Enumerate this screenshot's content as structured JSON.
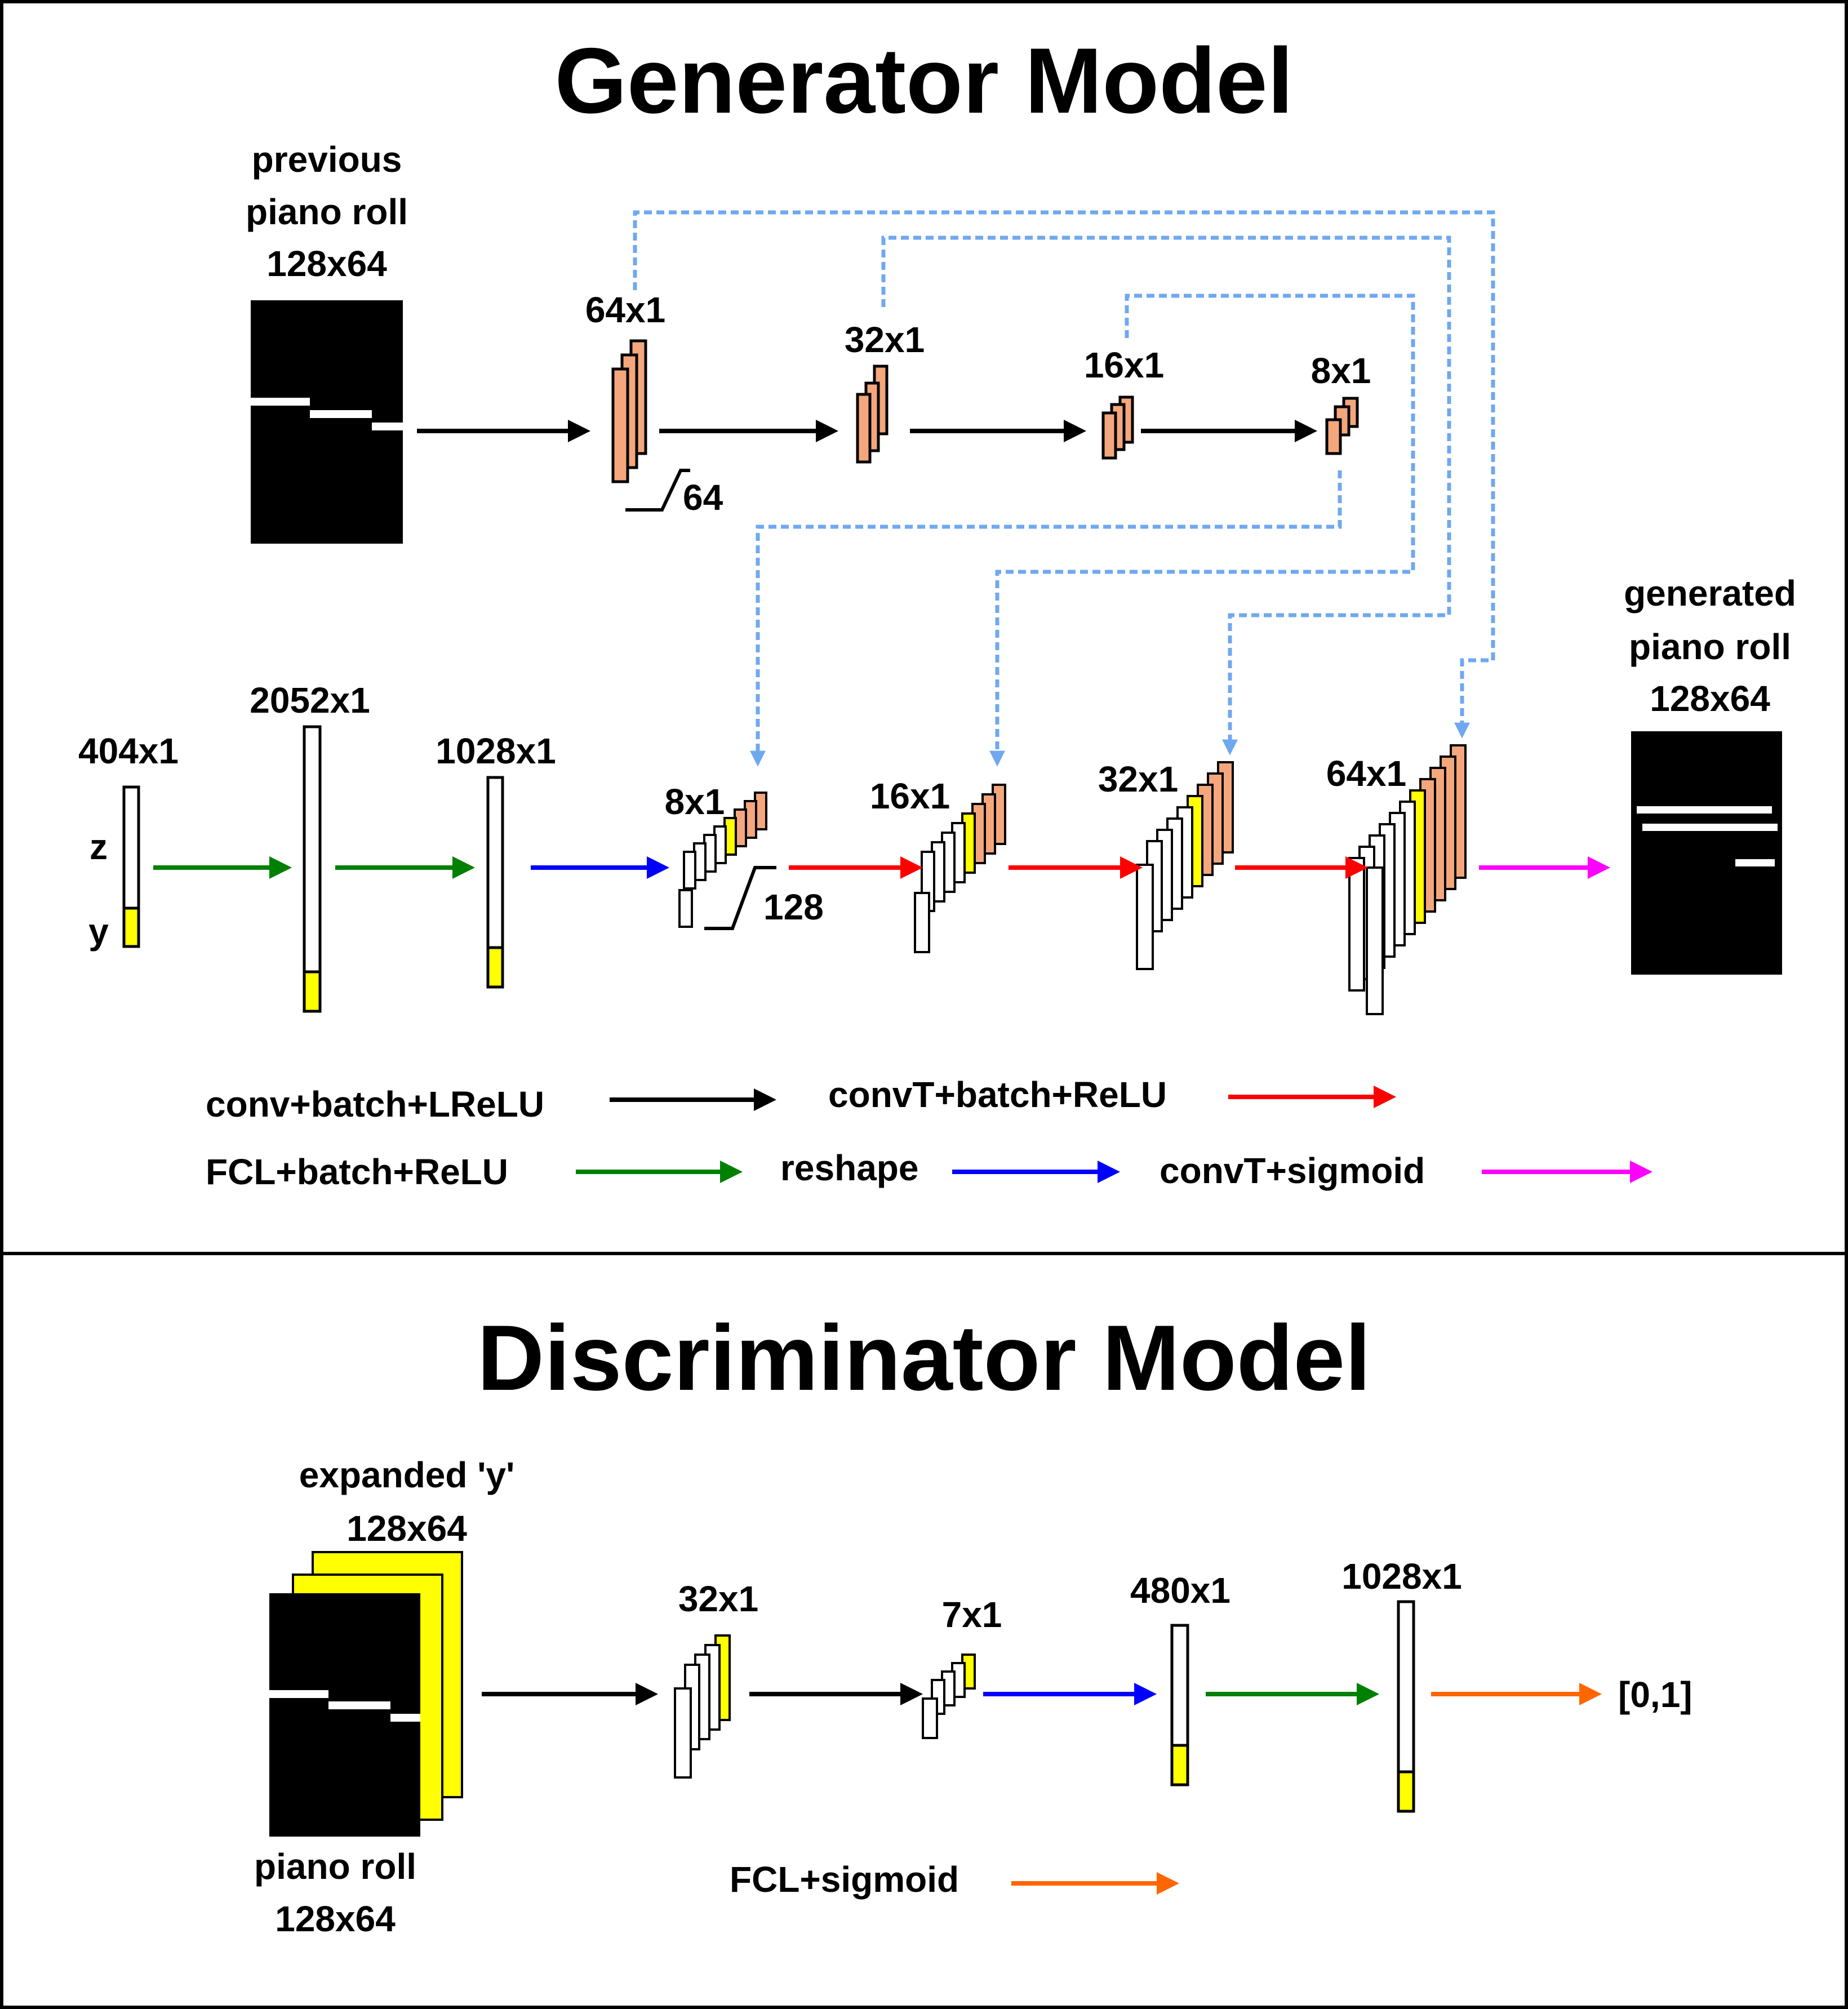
{
  "generator": {
    "title": "Generator Model",
    "input_label": [
      "previous",
      "piano roll",
      "128x64"
    ],
    "encoder_dims": [
      "64x1",
      "32x1",
      "16x1",
      "8x1"
    ],
    "encoder_depth": "64",
    "latent_dim": "404x1",
    "z_label": "z",
    "y_label": "y",
    "fc_dims": [
      "2052x1",
      "1028x1"
    ],
    "decoder_dims": [
      "8x1",
      "16x1",
      "32x1",
      "64x1"
    ],
    "decoder_depth": "128",
    "output_label": [
      "generated",
      "piano roll",
      "128x64"
    ]
  },
  "legend": {
    "conv": "conv+batch+LReLU",
    "convT": "convT+batch+ReLU",
    "fcl": "FCL+batch+ReLU",
    "reshape": "reshape",
    "convT_sigmoid": "convT+sigmoid",
    "fcl_sigmoid": "FCL+sigmoid"
  },
  "discriminator": {
    "title": "Discriminator Model",
    "expanded_label": [
      "expanded 'y'",
      "128x64"
    ],
    "input_label": [
      "piano roll",
      "128x64"
    ],
    "conv_dims": [
      "32x1",
      "7x1"
    ],
    "fc_dims": [
      "480x1",
      "1028x1"
    ],
    "output": "[0,1]"
  },
  "colors": {
    "conv": "#000000",
    "convT": "#ff0000",
    "fcl": "#008000",
    "reshape": "#0000ff",
    "convT_sigmoid": "#ff00ff",
    "fcl_sigmoid": "#ff6600",
    "skip": "#70a8f0",
    "encoder_fill": "#f4a77c",
    "condition_fill": "#ffff00"
  }
}
